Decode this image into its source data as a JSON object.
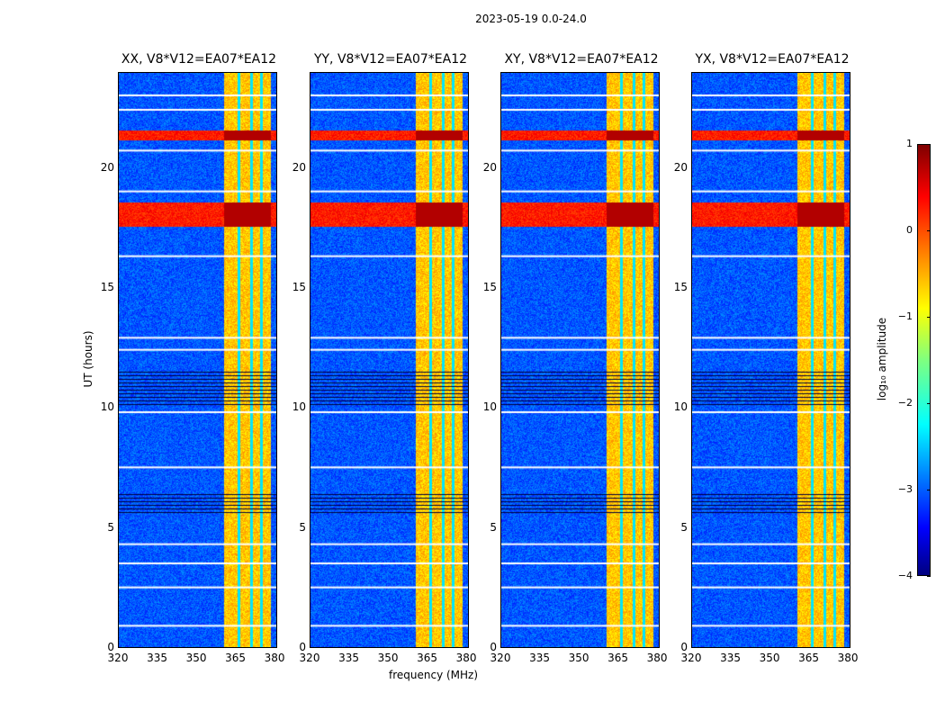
{
  "figure": {
    "suptitle": "2023-05-19 0.0-24.0",
    "xlabel": "frequency (MHz)",
    "ylabel": "UT (hours)",
    "colorbar_label": "log₁₀ amplitude"
  },
  "chart_data": {
    "type": "heatmap",
    "title": "2023-05-19 0.0-24.0",
    "xlabel": "frequency (MHz)",
    "ylabel": "UT (hours)",
    "xlim": [
      320,
      381
    ],
    "ylim": [
      0,
      24
    ],
    "xticks": [
      "320",
      "335",
      "350",
      "365",
      "380"
    ],
    "yticks": [
      "0",
      "5",
      "10",
      "15",
      "20"
    ],
    "colormap": "jet",
    "colorbar": {
      "label": "log10 amplitude",
      "range": [
        -4,
        1
      ],
      "ticks": [
        "1",
        "0",
        "−1",
        "−2",
        "−3",
        "−4"
      ]
    },
    "panels": [
      {
        "title": "XX, V8*V12=EA07*EA12",
        "polarization": "XX"
      },
      {
        "title": "YY, V8*V12=EA07*EA12",
        "polarization": "YY"
      },
      {
        "title": "XY, V8*V12=EA07*EA12",
        "polarization": "XY"
      },
      {
        "title": "YX, V8*V12=EA07*EA12",
        "polarization": "YX"
      }
    ],
    "bright_band_MHz": [
      360,
      378
    ],
    "strong_rfi_hours": [
      [
        17.6,
        18.6
      ],
      [
        21.2,
        21.6
      ]
    ],
    "flagged_hours": [
      [
        5.7,
        6.5
      ],
      [
        10.1,
        11.6
      ]
    ]
  }
}
